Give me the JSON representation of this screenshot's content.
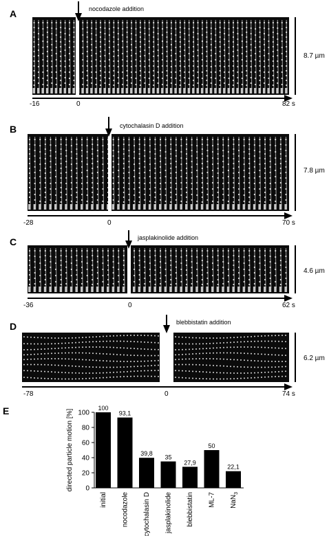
{
  "panels": [
    {
      "label": "A",
      "annotation": "nocodazole addition",
      "scale": "8.7 µm",
      "ticks": [
        "-16",
        "0",
        "82 s"
      ]
    },
    {
      "label": "B",
      "annotation": "cytochalasin D addition",
      "scale": "7.8 µm",
      "ticks": [
        "-28",
        "0",
        "70 s"
      ]
    },
    {
      "label": "C",
      "annotation": "jasplakinolide addition",
      "scale": "4.6 µm",
      "ticks": [
        "-36",
        "0",
        "62 s"
      ]
    },
    {
      "label": "D",
      "annotation": "blebbistatin addition",
      "scale": "6.2 µm",
      "ticks": [
        "-78",
        "0",
        "74 s"
      ]
    }
  ],
  "panel_e_label": "E",
  "chart_data": {
    "type": "bar",
    "categories": [
      "initial",
      "nocodazole",
      "cytochalasin D",
      "jasplakinolide",
      "blebbistatin",
      "ML-7",
      "NaN3"
    ],
    "values": [
      100,
      93.1,
      39.8,
      35,
      27.9,
      50,
      22.1
    ],
    "data_labels": [
      "100",
      "93,1",
      "39,8",
      "35",
      "27,9",
      "50",
      "22,1"
    ],
    "ylabel": "directed particle motion [%]",
    "ylim": [
      0,
      100
    ],
    "yticks": [
      "0",
      "20",
      "40",
      "60",
      "80",
      "100"
    ],
    "bar_color": "#000000"
  }
}
